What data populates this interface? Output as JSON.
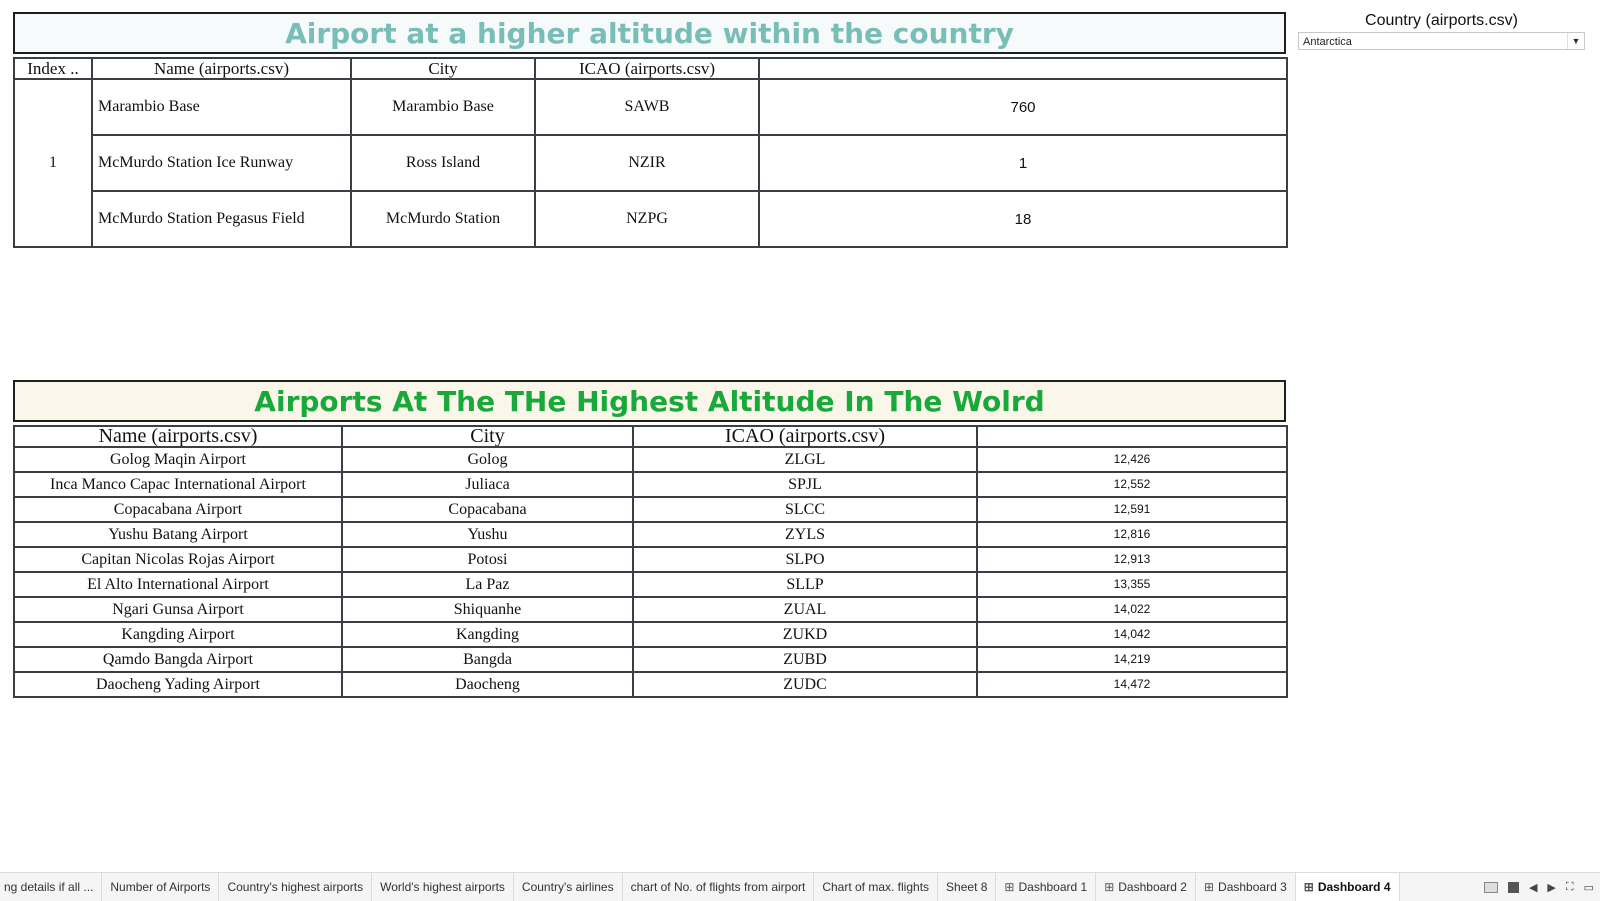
{
  "table1": {
    "title": "Airport at a higher altitude within the country",
    "headers": [
      "Index ..",
      "Name (airports.csv)",
      "City",
      "ICAO (airports.csv)",
      ""
    ],
    "index_value": "1",
    "rows": [
      {
        "name": "Marambio Base",
        "city": "Marambio Base",
        "icao": "SAWB",
        "altitude": "760"
      },
      {
        "name": "McMurdo Station Ice Runway",
        "city": "Ross Island",
        "icao": "NZIR",
        "altitude": "1"
      },
      {
        "name": "McMurdo Station Pegasus Field",
        "city": "McMurdo Station",
        "icao": "NZPG",
        "altitude": "18"
      }
    ]
  },
  "table2": {
    "title": "Airports At The THe Highest Altitude In The Wolrd",
    "headers": [
      "Name (airports.csv)",
      "City",
      "ICAO (airports.csv)",
      ""
    ],
    "rows": [
      {
        "name": "Golog Maqin Airport",
        "city": "Golog",
        "icao": "ZLGL",
        "altitude": "12,426"
      },
      {
        "name": "Inca Manco Capac International Airport",
        "city": "Juliaca",
        "icao": "SPJL",
        "altitude": "12,552"
      },
      {
        "name": "Copacabana Airport",
        "city": "Copacabana",
        "icao": "SLCC",
        "altitude": "12,591"
      },
      {
        "name": "Yushu Batang Airport",
        "city": "Yushu",
        "icao": "ZYLS",
        "altitude": "12,816"
      },
      {
        "name": "Capitan Nicolas Rojas Airport",
        "city": "Potosi",
        "icao": "SLPO",
        "altitude": "12,913"
      },
      {
        "name": "El Alto International Airport",
        "city": "La Paz",
        "icao": "SLLP",
        "altitude": "13,355"
      },
      {
        "name": "Ngari Gunsa Airport",
        "city": "Shiquanhe",
        "icao": "ZUAL",
        "altitude": "14,022"
      },
      {
        "name": "Kangding Airport",
        "city": "Kangding",
        "icao": "ZUKD",
        "altitude": "14,042"
      },
      {
        "name": "Qamdo Bangda Airport",
        "city": "Bangda",
        "icao": "ZUBD",
        "altitude": "14,219"
      },
      {
        "name": "Daocheng Yading Airport",
        "city": "Daocheng",
        "icao": "ZUDC",
        "altitude": "14,472"
      }
    ]
  },
  "filter": {
    "label": "Country (airports.csv)",
    "selected": "Antarctica"
  },
  "tabs": [
    {
      "label": "ng details if all ...",
      "type": "sheet",
      "active": false
    },
    {
      "label": "Number of Airports",
      "type": "sheet",
      "active": false
    },
    {
      "label": "Country's highest airports",
      "type": "sheet",
      "active": false
    },
    {
      "label": "World's highest airports",
      "type": "sheet",
      "active": false
    },
    {
      "label": "Country's airlines",
      "type": "sheet",
      "active": false
    },
    {
      "label": "chart of No. of flights from airport",
      "type": "sheet",
      "active": false
    },
    {
      "label": "Chart of max. flights",
      "type": "sheet",
      "active": false
    },
    {
      "label": "Sheet 8",
      "type": "sheet",
      "active": false
    },
    {
      "label": "Dashboard 1",
      "type": "dashboard",
      "active": false
    },
    {
      "label": "Dashboard 2",
      "type": "dashboard",
      "active": false
    },
    {
      "label": "Dashboard 3",
      "type": "dashboard",
      "active": false
    },
    {
      "label": "Dashboard 4",
      "type": "dashboard",
      "active": true
    }
  ],
  "colors": {
    "title1": "#79bdb8",
    "title2": "#19a83a",
    "border": "#3a3f46"
  }
}
